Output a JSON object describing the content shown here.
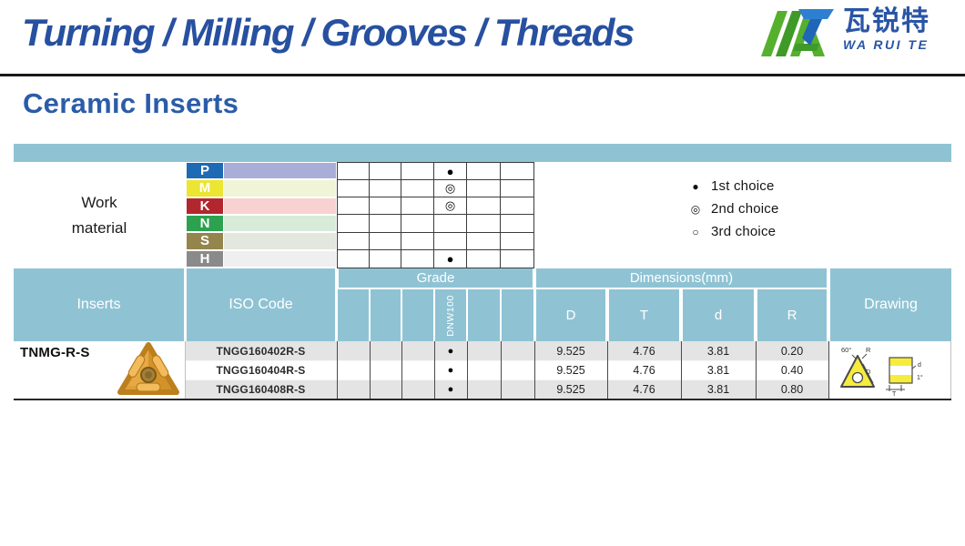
{
  "header": {
    "title": "Turning / Milling / Grooves / Threads",
    "logo": {
      "chinese": "瓦锐特",
      "latin": "WA RUI TE"
    }
  },
  "section_title": "Ceramic Inserts",
  "work_material": {
    "label": [
      "Work",
      "material"
    ],
    "rows": [
      {
        "code": "P",
        "label_color": "#1e6ab4",
        "band_color": "#a9aed8",
        "marker": "●"
      },
      {
        "code": "M",
        "label_color": "#ece531",
        "band_color": "#f0f5d8",
        "marker": "◎"
      },
      {
        "code": "K",
        "label_color": "#b2262e",
        "band_color": "#f8d2d0",
        "marker": "◎"
      },
      {
        "code": "N",
        "label_color": "#2ca14f",
        "band_color": "#d8ebd8",
        "marker": ""
      },
      {
        "code": "S",
        "label_color": "#94854d",
        "band_color": "#e3e7dd",
        "marker": ""
      },
      {
        "code": "H",
        "label_color": "#8a8a8a",
        "band_color": "#efefef",
        "marker": "●"
      }
    ]
  },
  "legend": [
    {
      "symbol": "●",
      "label": "1st choice"
    },
    {
      "symbol": "◎",
      "label": "2nd choice"
    },
    {
      "symbol": "○",
      "label": "3rd choice"
    }
  ],
  "table": {
    "headers": {
      "inserts": "Inserts",
      "iso_code": "ISO Code",
      "grade": "Grade",
      "grade_name": "DNW100",
      "dimensions": "Dimensions(mm)",
      "dim_cols": [
        "D",
        "T",
        "d",
        "R"
      ],
      "drawing": "Drawing"
    },
    "product_name": "TNMG-R-S",
    "rows": [
      {
        "iso": "TNGG160402R-S",
        "grade_marker": "●",
        "dims": [
          "9.525",
          "4.76",
          "3.81",
          "0.20"
        ]
      },
      {
        "iso": "TNGG160404R-S",
        "grade_marker": "●",
        "dims": [
          "9.525",
          "4.76",
          "3.81",
          "0.40"
        ]
      },
      {
        "iso": "TNGG160408R-S",
        "grade_marker": "●",
        "dims": [
          "9.525",
          "4.76",
          "3.81",
          "0.80"
        ]
      }
    ],
    "drawing_labels": {
      "angle": "60°",
      "radius": "R",
      "diameter": "D",
      "hole": "d",
      "taper": "1°",
      "thickness": "T"
    }
  },
  "colors": {
    "headline_blue": "#2750a0",
    "title_blue": "#2b5ca8",
    "table_header_blue": "#8fc3d4",
    "stripe_gray": "#e4e4e4",
    "grid_line": "#3c3c3c",
    "insert_gold": "#e0a039",
    "drawing_yellow": "#f6ec3e",
    "logo_green": "#53ad2c",
    "logo_blue": "#2e7fd1"
  }
}
